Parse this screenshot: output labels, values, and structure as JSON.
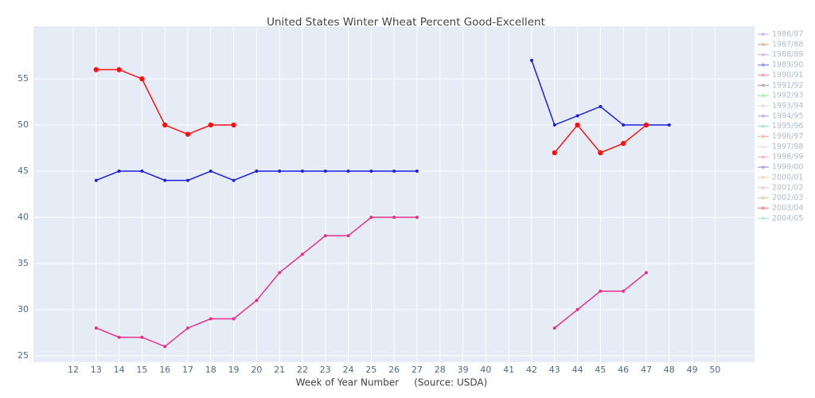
{
  "chart_data": {
    "type": "line",
    "title": "United States Winter Wheat Percent Good-Excellent",
    "x_label": "Week of Year Number     (Source: USDA)",
    "categories": [
      "12",
      "13",
      "14",
      "15",
      "16",
      "17",
      "18",
      "19",
      "20",
      "21",
      "22",
      "23",
      "24",
      "25",
      "26",
      "27",
      "28",
      "39",
      "40",
      "41",
      "42",
      "43",
      "44",
      "45",
      "46",
      "47",
      "48",
      "49",
      "50"
    ],
    "ylim": [
      24.3,
      60.7
    ],
    "yticks": [
      25,
      30,
      35,
      40,
      45,
      50,
      55
    ],
    "grid": true,
    "legend": "right",
    "series": [
      {
        "name": "1986/87",
        "color": "#7f7fe8",
        "values": [
          null,
          null,
          null,
          null,
          null,
          null,
          null,
          null,
          null,
          null,
          null,
          null,
          null,
          null,
          null,
          null,
          null,
          null,
          null,
          null,
          null,
          null,
          null,
          null,
          null,
          null,
          null,
          null,
          null
        ]
      },
      {
        "name": "1987/88",
        "color": "#a8703c",
        "values": [
          null,
          null,
          null,
          null,
          null,
          null,
          null,
          null,
          null,
          null,
          null,
          null,
          null,
          null,
          null,
          null,
          null,
          null,
          null,
          null,
          null,
          null,
          null,
          null,
          null,
          null,
          null,
          null,
          null
        ]
      },
      {
        "name": "1988/89",
        "color": "#a07ad0",
        "values": [
          null,
          null,
          null,
          null,
          null,
          null,
          null,
          null,
          null,
          null,
          null,
          null,
          null,
          null,
          null,
          null,
          null,
          null,
          null,
          null,
          null,
          null,
          null,
          null,
          null,
          null,
          null,
          null,
          null
        ]
      },
      {
        "name": "1989/90",
        "color": "#1f1fe0",
        "values": [
          null,
          44,
          45,
          45,
          44,
          44,
          45,
          44,
          45,
          45,
          45,
          45,
          45,
          45,
          45,
          45,
          null,
          null,
          null,
          null,
          57,
          50,
          51,
          52,
          50,
          50,
          50,
          null,
          null
        ]
      },
      {
        "name": "1990/91",
        "color": "#e8308a",
        "values": [
          null,
          28,
          27,
          27,
          26,
          28,
          29,
          29,
          31,
          34,
          36,
          38,
          38,
          40,
          40,
          40,
          null,
          null,
          null,
          null,
          null,
          28,
          30,
          32,
          32,
          34,
          null,
          null,
          null
        ]
      },
      {
        "name": "1991/92",
        "color": "#606060",
        "values": [
          null,
          null,
          null,
          null,
          null,
          null,
          null,
          null,
          null,
          null,
          null,
          null,
          null,
          null,
          null,
          null,
          null,
          null,
          null,
          null,
          null,
          null,
          null,
          null,
          null,
          null,
          null,
          null,
          null
        ]
      },
      {
        "name": "1992/93",
        "color": "#50d850",
        "values": [
          null,
          null,
          null,
          null,
          null,
          null,
          null,
          null,
          null,
          null,
          null,
          null,
          null,
          null,
          null,
          null,
          null,
          null,
          null,
          null,
          null,
          null,
          null,
          null,
          null,
          null,
          null,
          null,
          null
        ]
      },
      {
        "name": "1993/94",
        "color": "#d8c0a8",
        "values": [
          null,
          null,
          null,
          null,
          null,
          null,
          null,
          null,
          null,
          null,
          null,
          null,
          null,
          null,
          null,
          null,
          null,
          null,
          null,
          null,
          null,
          null,
          null,
          null,
          null,
          null,
          null,
          null,
          null
        ]
      },
      {
        "name": "1994/95",
        "color": "#8a60e0",
        "values": [
          null,
          null,
          null,
          null,
          null,
          null,
          null,
          null,
          null,
          null,
          null,
          null,
          null,
          null,
          null,
          null,
          null,
          null,
          null,
          null,
          null,
          null,
          null,
          null,
          null,
          null,
          null,
          null,
          null
        ]
      },
      {
        "name": "1995/96",
        "color": "#40c8b0",
        "values": [
          null,
          null,
          null,
          null,
          null,
          null,
          null,
          null,
          null,
          null,
          null,
          null,
          null,
          null,
          null,
          null,
          null,
          null,
          null,
          null,
          null,
          null,
          null,
          null,
          null,
          null,
          null,
          null,
          null
        ]
      },
      {
        "name": "1996/97",
        "color": "#e87048",
        "values": [
          null,
          null,
          null,
          null,
          null,
          null,
          null,
          null,
          null,
          null,
          null,
          null,
          null,
          null,
          null,
          null,
          null,
          null,
          null,
          null,
          null,
          null,
          null,
          null,
          null,
          null,
          null,
          null,
          null
        ]
      },
      {
        "name": "1997/98",
        "color": "#d8c0d8",
        "values": [
          null,
          null,
          null,
          null,
          null,
          null,
          null,
          null,
          null,
          null,
          null,
          null,
          null,
          null,
          null,
          null,
          null,
          null,
          null,
          null,
          null,
          null,
          null,
          null,
          null,
          null,
          null,
          null,
          null
        ]
      },
      {
        "name": "1998/99",
        "color": "#e870a8",
        "values": [
          null,
          null,
          null,
          null,
          null,
          null,
          null,
          null,
          null,
          null,
          null,
          null,
          null,
          null,
          null,
          null,
          null,
          null,
          null,
          null,
          null,
          null,
          null,
          null,
          null,
          null,
          null,
          null,
          null
        ]
      },
      {
        "name": "1999/00",
        "color": "#4848b0",
        "values": [
          null,
          null,
          null,
          null,
          null,
          null,
          null,
          null,
          null,
          null,
          null,
          null,
          null,
          null,
          null,
          null,
          null,
          null,
          null,
          null,
          null,
          null,
          null,
          null,
          null,
          null,
          null,
          null,
          null
        ]
      },
      {
        "name": "2000/01",
        "color": "#e8b070",
        "values": [
          null,
          null,
          null,
          null,
          null,
          null,
          null,
          null,
          null,
          null,
          null,
          null,
          null,
          null,
          null,
          null,
          null,
          null,
          null,
          null,
          null,
          null,
          null,
          null,
          null,
          null,
          null,
          null,
          null
        ]
      },
      {
        "name": "2001/02",
        "color": "#e0a0a0",
        "values": [
          null,
          null,
          null,
          null,
          null,
          null,
          null,
          null,
          null,
          null,
          null,
          null,
          null,
          null,
          null,
          null,
          null,
          null,
          null,
          null,
          null,
          null,
          null,
          null,
          null,
          null,
          null,
          null,
          null
        ]
      },
      {
        "name": "2002/03",
        "color": "#b8a060",
        "values": [
          null,
          null,
          null,
          null,
          null,
          null,
          null,
          null,
          null,
          null,
          null,
          null,
          null,
          null,
          null,
          null,
          null,
          null,
          null,
          null,
          null,
          null,
          null,
          null,
          null,
          null,
          null,
          null,
          null
        ]
      },
      {
        "name": "2003/04",
        "color": "#ff1010",
        "values": [
          null,
          56,
          56,
          55,
          50,
          49,
          50,
          50,
          null,
          null,
          null,
          null,
          null,
          null,
          null,
          null,
          null,
          null,
          null,
          null,
          null,
          47,
          50,
          47,
          48,
          50,
          null,
          null,
          null
        ]
      },
      {
        "name": "2004/05",
        "color": "#60d8b0",
        "values": [
          null,
          null,
          null,
          null,
          null,
          null,
          null,
          null,
          null,
          null,
          null,
          null,
          null,
          null,
          null,
          null,
          null,
          null,
          null,
          null,
          null,
          null,
          null,
          null,
          null,
          null,
          null,
          null,
          null
        ]
      }
    ]
  }
}
